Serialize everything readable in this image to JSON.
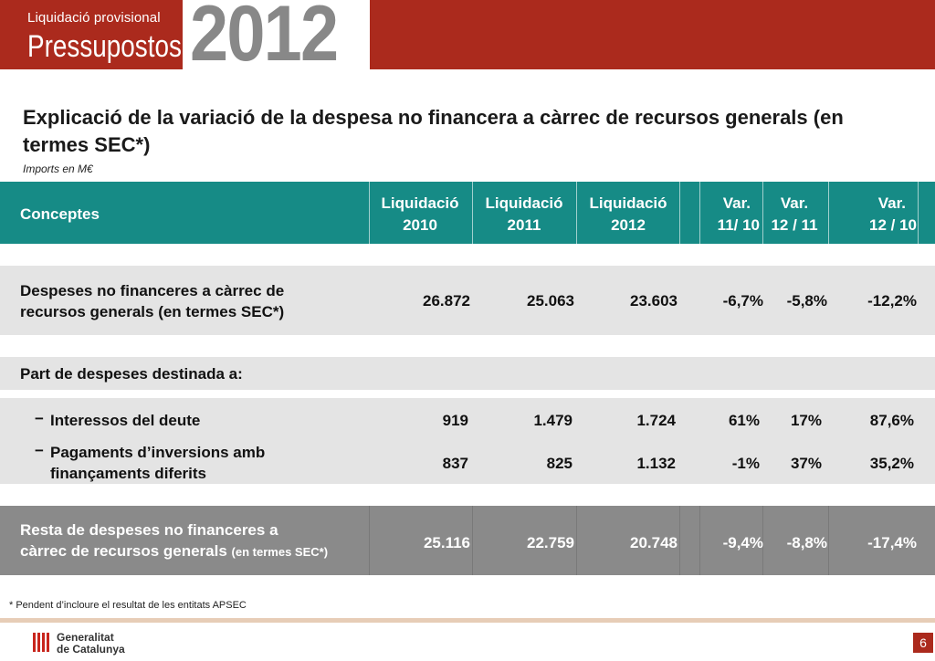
{
  "header": {
    "subtitle": "Liquidació provisional",
    "title": "Pressupostos",
    "year": "2012"
  },
  "page": {
    "title": "Explicació de la variació de la despesa no financera a càrrec de recursos generals (en termes SEC*)",
    "units": "Imports en M€"
  },
  "table": {
    "headers": {
      "concept": "Conceptes",
      "cols": [
        {
          "l1": "Liquidació",
          "l2": "2010"
        },
        {
          "l1": "Liquidació",
          "l2": "2011"
        },
        {
          "l1": "Liquidació",
          "l2": "2012"
        },
        {
          "l1": "Var.",
          "l2": "11/ 10"
        },
        {
          "l1": "Var.",
          "l2": "12 / 11"
        },
        {
          "l1": "Var.",
          "l2": "12 / 10"
        }
      ]
    },
    "row_total": {
      "label_l1": "Despeses no financeres a càrrec de",
      "label_l2": "recursos generals (en termes SEC*)",
      "values": [
        "26.872",
        "25.063",
        "23.603",
        "-6,7%",
        "-5,8%",
        "-12,2%"
      ]
    },
    "section_label": "Part de despeses destinada a:",
    "row_interest": {
      "label": "Interessos del deute",
      "values": [
        "919",
        "1.479",
        "1.724",
        "61%",
        "17%",
        "87,6%"
      ]
    },
    "row_investment": {
      "label_l1": "Pagaments d’inversions amb",
      "label_l2": "finançaments diferits",
      "values": [
        "837",
        "825",
        "1.132",
        "-1%",
        "37%",
        "35,2%"
      ]
    },
    "row_rest": {
      "label_l1": "Resta de despeses no financeres a",
      "label_l2": "càrrec de recursos generals",
      "label_suffix": "(en termes SEC*)",
      "values": [
        "25.116",
        "22.759",
        "20.748",
        "-9,4%",
        "-8,8%",
        "-17,4%"
      ]
    },
    "dash": "−"
  },
  "footnote": "* Pendent d’incloure el resultat de les entitats APSEC",
  "footer": {
    "org_l1": "Generalitat",
    "org_l2": "de Catalunya",
    "page_number": "6"
  }
}
